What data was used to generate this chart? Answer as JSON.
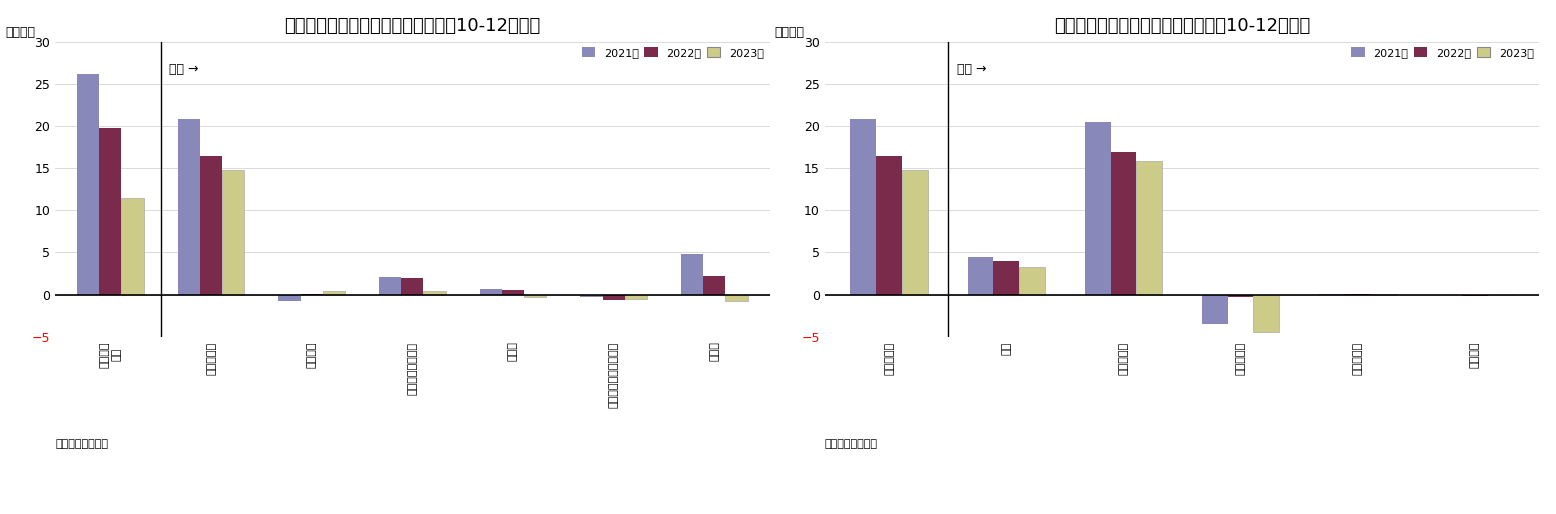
{
  "chart1": {
    "title": "（図表７）家計資産のフロー（各年10-12月期）",
    "ylabel": "（兆円）",
    "categories": [
      "家計資産\n合計",
      "現金・頲金",
      "債務証券",
      "投資信託受益証券",
      "株式等",
      "保険・年金・定額保障",
      "その他"
    ],
    "series": {
      "2021年": [
        26.2,
        20.8,
        -0.8,
        2.1,
        0.6,
        -0.3,
        4.8
      ],
      "2022年": [
        19.8,
        16.5,
        0.05,
        2.0,
        0.5,
        -0.7,
        2.2
      ],
      "2023年": [
        11.5,
        14.8,
        0.4,
        0.4,
        -0.3,
        -0.5,
        -0.8
      ]
    },
    "ylim": [
      -5,
      30
    ],
    "yticks": [
      -5,
      0,
      5,
      10,
      15,
      20,
      25,
      30
    ],
    "annotation": "内訳 →",
    "source": "（資料）日本銀行"
  },
  "chart2": {
    "title": "（図表８）現・頲金のフロー（各年10-12月期）",
    "ylabel": "（兆円）",
    "categories": [
      "現金・頲金",
      "現金",
      "流動性頲金",
      "定期性頲金",
      "譲渡性頲金",
      "外貨頲金"
    ],
    "series": {
      "2021年": [
        20.8,
        4.5,
        20.5,
        -3.5,
        0.05,
        -0.1
      ],
      "2022年": [
        16.5,
        4.0,
        16.9,
        -0.3,
        0.05,
        -0.2
      ],
      "2023年": [
        14.8,
        3.3,
        15.8,
        -4.5,
        0.05,
        -0.1
      ]
    },
    "ylim": [
      -5,
      30
    ],
    "yticks": [
      -5,
      0,
      5,
      10,
      15,
      20,
      25,
      30
    ],
    "annotation": "内訳 →",
    "source": "（資料）日本銀行"
  },
  "legend_labels": [
    "2021年",
    "2022年",
    "2023年"
  ],
  "bar_colors": [
    "#8888bb",
    "#7a2a4a",
    "#cccc88"
  ]
}
